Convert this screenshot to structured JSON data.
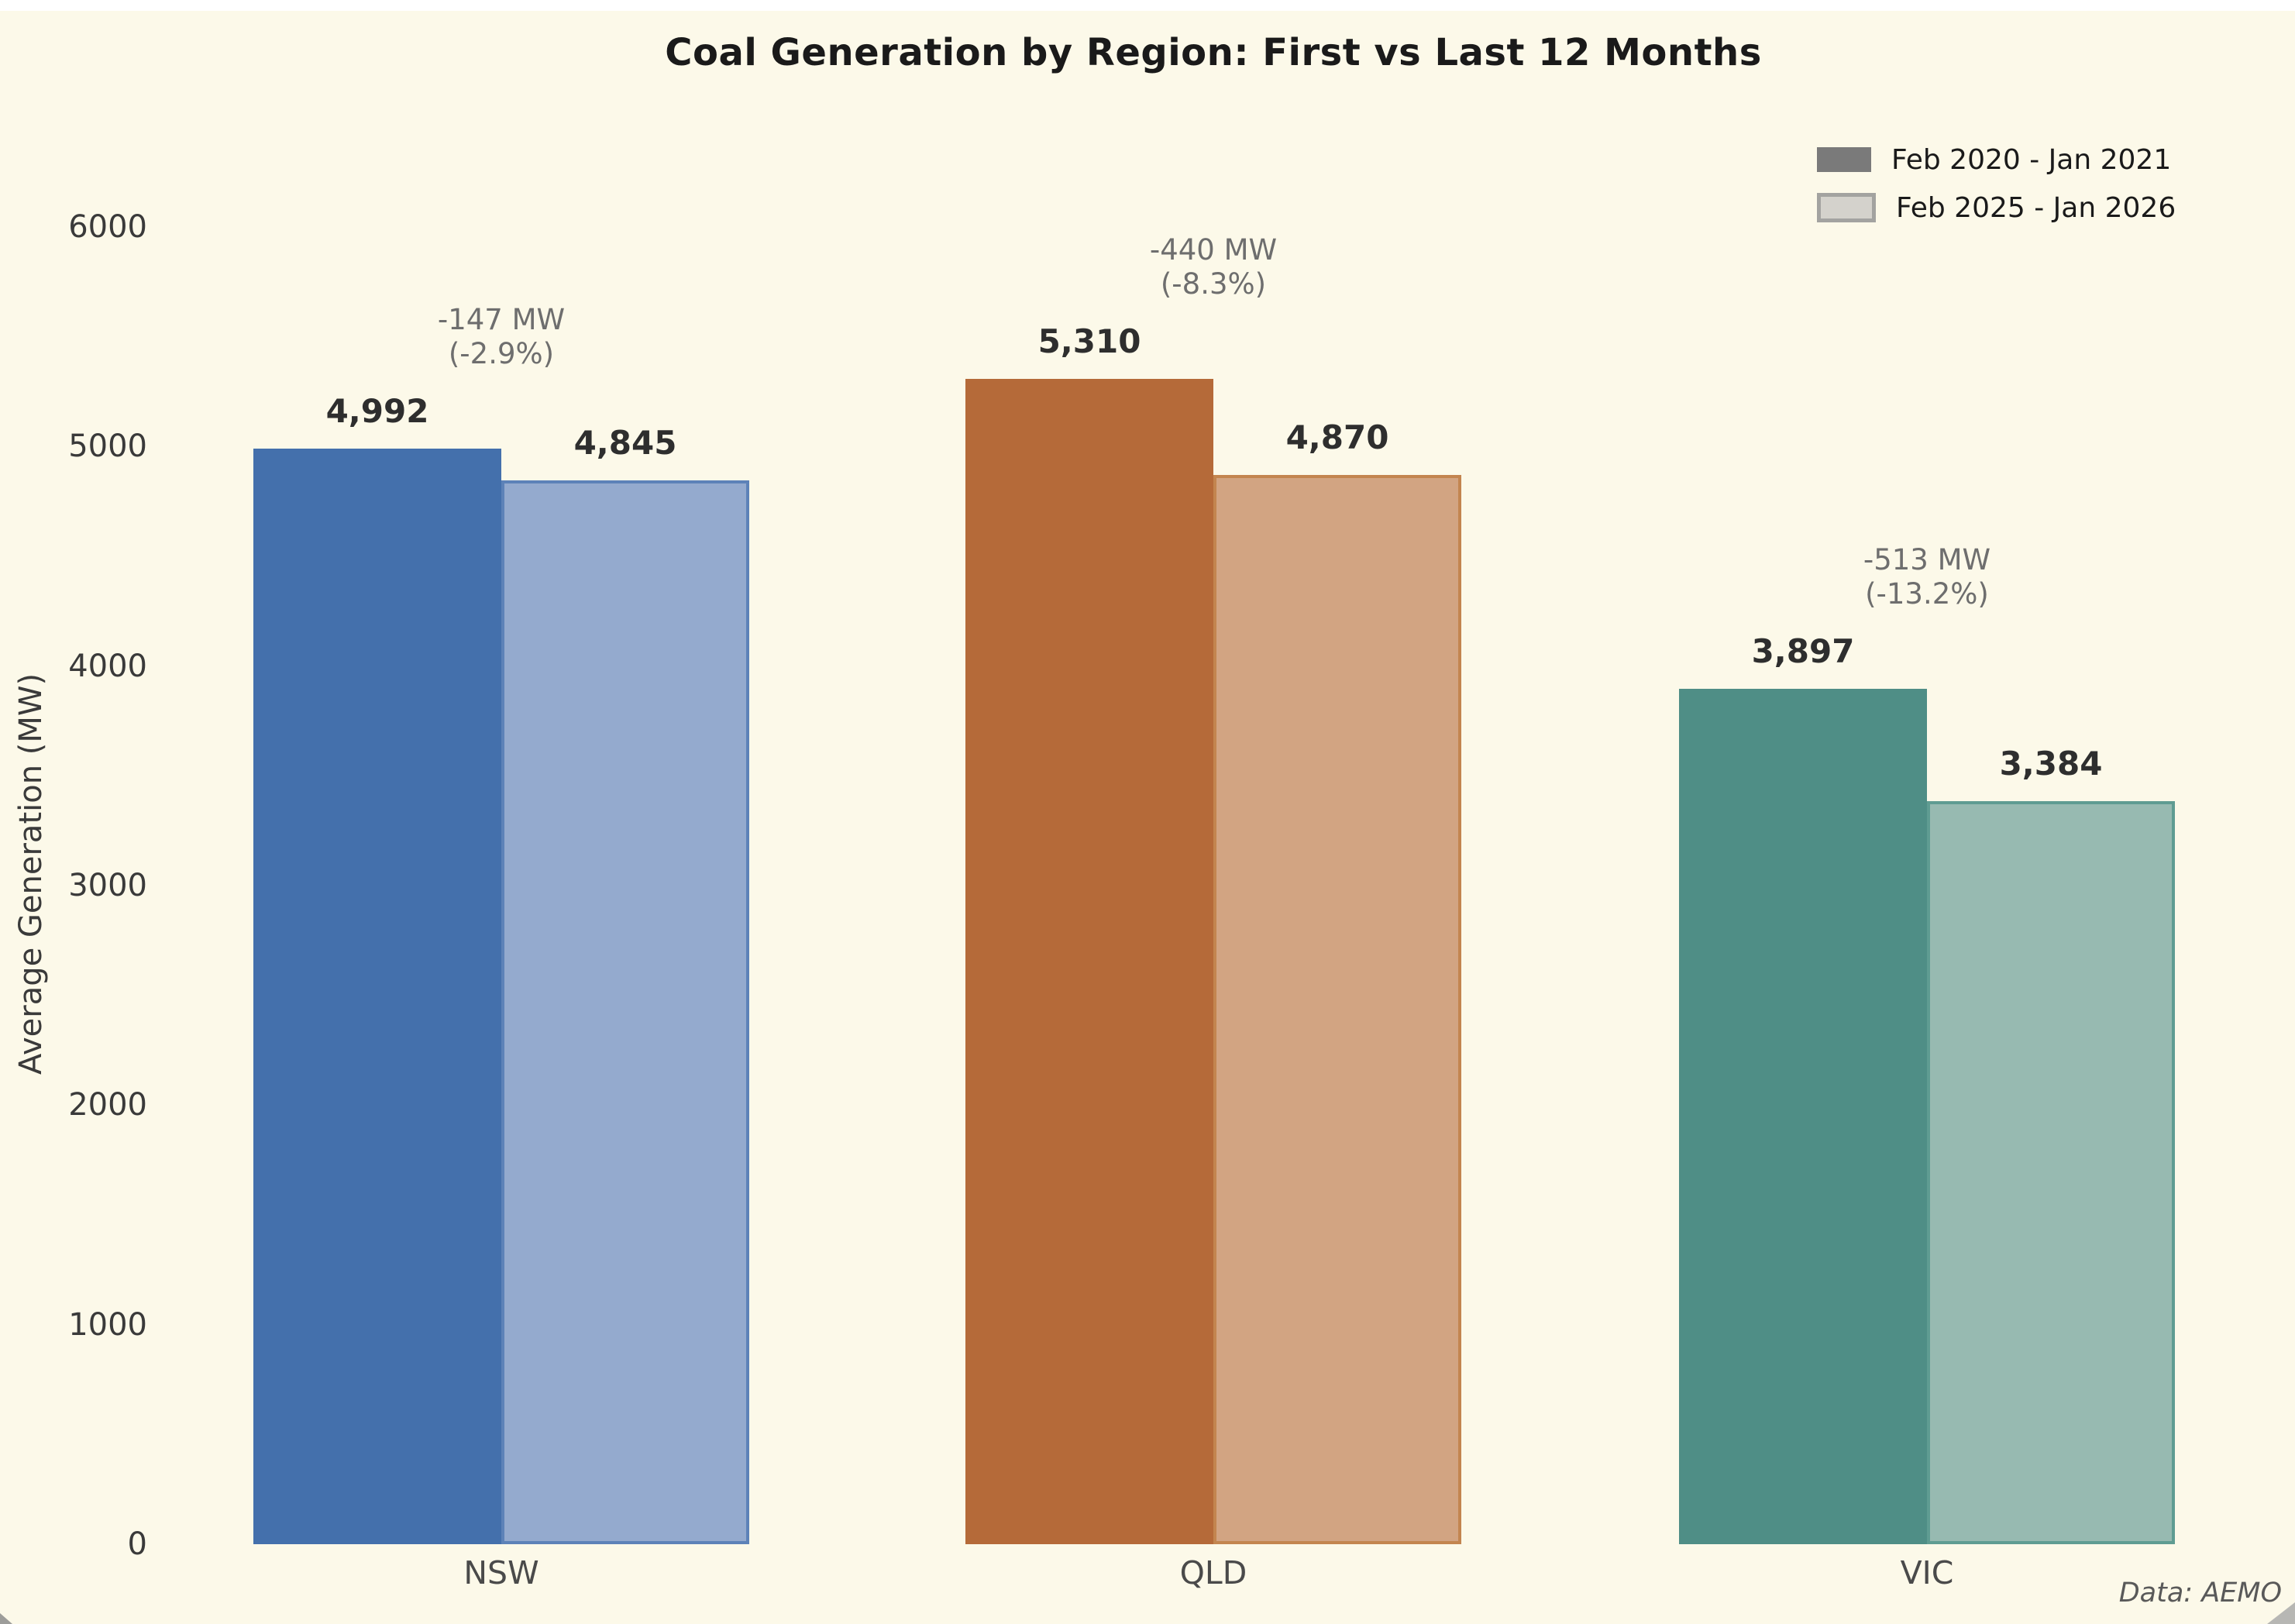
{
  "title": "Coal Generation by Region: First vs Last 12 Months",
  "source_note": "Data: AEMO",
  "legend": {
    "position": "upper right",
    "items": [
      {
        "label": "Feb 2020 - Jan 2021",
        "swatch": "solid-gray"
      },
      {
        "label": "Feb 2025 - Jan 2026",
        "swatch": "light-gray-outlined"
      }
    ]
  },
  "colors": {
    "background": "#FCF9E9",
    "top_band": "#FFFFFF",
    "title_text": "#1A1A1A",
    "tick_text": "#3A3A3A",
    "value_label_text": "#2E2E2E",
    "annotation_text": "#6E6E6E",
    "source_text": "#595959",
    "legend_solid_swatch": "#7A7A7A",
    "legend_light_swatch": "#D4D2CC"
  },
  "chart_data": {
    "type": "bar",
    "title": "Coal Generation by Region: First vs Last 12 Months",
    "xlabel": "",
    "ylabel": "Average Generation (MW)",
    "ylim": [
      0,
      6000
    ],
    "yticks": [
      "0",
      "1000",
      "2000",
      "3000",
      "4000",
      "5000",
      "6000"
    ],
    "grid": false,
    "legend_position": "upper right",
    "categories": [
      "NSW",
      "QLD",
      "VIC"
    ],
    "series": [
      {
        "name": "Feb 2020 - Jan 2021",
        "values": [
          4992,
          5310,
          3897
        ],
        "labels": [
          "4,992",
          "5,310",
          "3,897"
        ]
      },
      {
        "name": "Feb 2025 - Jan 2026",
        "values": [
          4845,
          4870,
          3384
        ],
        "labels": [
          "4,845",
          "4,870",
          "3,384"
        ]
      }
    ],
    "annotations": [
      {
        "line1": "-147 MW",
        "line2": "(-2.9%)"
      },
      {
        "line1": "-440 MW",
        "line2": "(-8.3%)"
      },
      {
        "line1": "-513 MW",
        "line2": "(-13.2%)"
      }
    ],
    "region_colors": [
      {
        "dark": "#4470AC",
        "light": "#94AACE",
        "border": "#5D82B8"
      },
      {
        "dark": "#B56A39",
        "light": "#D2A482",
        "border": "#C3854F"
      },
      {
        "dark": "#4F8E86",
        "light": "#97BAB1",
        "border": "#5F9C92"
      }
    ],
    "source_note": "Data: AEMO"
  }
}
